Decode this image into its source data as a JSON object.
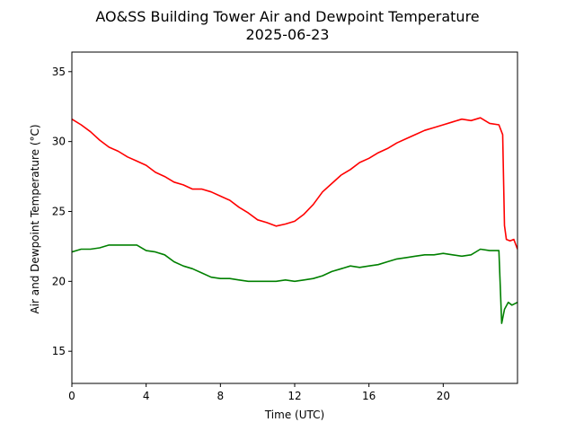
{
  "chart_data": {
    "type": "line",
    "title": "AO&SS Building Tower Air and Dewpoint Temperature",
    "subtitle": "2025-06-23",
    "xlabel": "Time (UTC)",
    "ylabel": "Air and Dewpoint Temperature (°C)",
    "xlim": [
      0,
      24
    ],
    "ylim": [
      12.7,
      36.4
    ],
    "xticks": [
      0,
      4,
      8,
      12,
      16,
      20
    ],
    "yticks": [
      15,
      20,
      25,
      30,
      35
    ],
    "grid": false,
    "legend": "none",
    "series": [
      {
        "color": "#ff0000",
        "x": [
          0,
          0.5,
          1,
          1.5,
          2,
          2.5,
          3,
          3.5,
          4,
          4.5,
          5,
          5.5,
          6,
          6.5,
          7,
          7.5,
          8,
          8.5,
          9,
          9.5,
          10,
          10.5,
          11,
          11.5,
          12,
          12.5,
          13,
          13.5,
          14,
          14.5,
          15,
          15.5,
          16,
          16.5,
          17,
          17.5,
          18,
          18.5,
          19,
          19.5,
          20,
          20.5,
          21,
          21.5,
          22,
          22.5,
          23,
          23.2,
          23.3,
          23.4,
          23.6,
          23.8,
          24
        ],
        "y": [
          31.6,
          31.2,
          30.7,
          30.1,
          29.6,
          29.3,
          28.9,
          28.6,
          28.3,
          27.8,
          27.5,
          27.1,
          26.9,
          26.6,
          26.6,
          26.4,
          26.1,
          25.8,
          25.3,
          24.9,
          24.4,
          24.2,
          23.95,
          24.1,
          24.3,
          24.8,
          25.5,
          26.4,
          27.0,
          27.6,
          28.0,
          28.5,
          28.8,
          29.2,
          29.5,
          29.9,
          30.2,
          30.5,
          30.8,
          31.0,
          31.2,
          31.4,
          31.6,
          31.5,
          31.7,
          31.3,
          31.2,
          30.5,
          24.0,
          23.0,
          22.9,
          23.0,
          22.3
        ]
      },
      {
        "color": "#008000",
        "x": [
          0,
          0.5,
          1,
          1.5,
          2,
          2.5,
          3,
          3.5,
          4,
          4.5,
          5,
          5.5,
          6,
          6.5,
          7,
          7.5,
          8,
          8.5,
          9,
          9.5,
          10,
          10.5,
          11,
          11.5,
          12,
          12.5,
          13,
          13.5,
          14,
          14.5,
          15,
          15.5,
          16,
          16.5,
          17,
          17.5,
          18,
          18.5,
          19,
          19.5,
          20,
          20.5,
          21,
          21.5,
          22,
          22.5,
          23,
          23.15,
          23.3,
          23.5,
          23.7,
          24
        ],
        "y": [
          22.1,
          22.3,
          22.3,
          22.4,
          22.6,
          22.6,
          22.6,
          22.6,
          22.2,
          22.1,
          21.9,
          21.4,
          21.1,
          20.9,
          20.6,
          20.3,
          20.2,
          20.2,
          20.1,
          20.0,
          20.0,
          20.0,
          20.0,
          20.1,
          20.0,
          20.1,
          20.2,
          20.4,
          20.7,
          20.9,
          21.1,
          21.0,
          21.1,
          21.2,
          21.4,
          21.6,
          21.7,
          21.8,
          21.9,
          21.9,
          22.0,
          21.9,
          21.8,
          21.9,
          22.3,
          22.2,
          22.2,
          17.0,
          18.0,
          18.5,
          18.3,
          18.5
        ]
      }
    ]
  }
}
